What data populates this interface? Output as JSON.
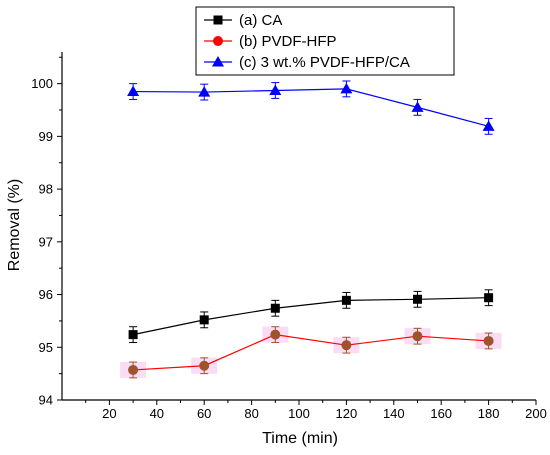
{
  "chart_data": {
    "type": "line",
    "title": "",
    "xlabel": "Time (min)",
    "ylabel": "Removal (%)",
    "xlim": [
      0,
      200
    ],
    "ylim": [
      94,
      100.6
    ],
    "xticks": [
      "20",
      "40",
      "60",
      "80",
      "100",
      "120",
      "140",
      "160",
      "180",
      "200"
    ],
    "yticks": [
      "94",
      "95",
      "96",
      "97",
      "98",
      "99",
      "100"
    ],
    "grid": false,
    "legend_position": "top",
    "series": [
      {
        "name": "(a) CA",
        "marker": "square",
        "color": "#000000",
        "x": [
          30,
          60,
          90,
          120,
          150,
          180
        ],
        "y": [
          95.24,
          95.52,
          95.74,
          95.89,
          95.91,
          95.94
        ],
        "error": [
          0.15,
          0.15,
          0.15,
          0.15,
          0.15,
          0.15
        ]
      },
      {
        "name": "(b) PVDF-HFP",
        "marker": "circle",
        "color": "#ff0000",
        "marker_color": "#a0522d",
        "x": [
          30,
          60,
          90,
          120,
          150,
          180
        ],
        "y": [
          94.57,
          94.65,
          95.24,
          95.04,
          95.21,
          95.12
        ],
        "error": [
          0.15,
          0.15,
          0.15,
          0.15,
          0.15,
          0.15
        ]
      },
      {
        "name": "(c) 3 wt.% PVDF-HFP/CA",
        "marker": "triangle",
        "color": "#0000ff",
        "x": [
          30,
          60,
          90,
          120,
          150,
          180
        ],
        "y": [
          99.85,
          99.84,
          99.87,
          99.9,
          99.55,
          99.19
        ],
        "error": [
          0.15,
          0.15,
          0.15,
          0.15,
          0.15,
          0.15
        ]
      }
    ]
  }
}
